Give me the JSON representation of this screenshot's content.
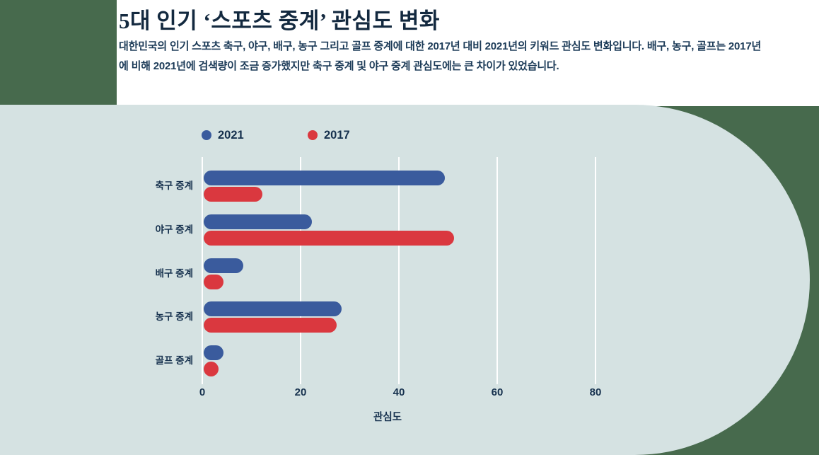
{
  "page": {
    "title": "5대 인기 ‘스포츠 중계’ 관심도 변화",
    "subtitle": "대한민국의 인기 스포츠 축구, 야구, 배구, 농구 그리고 골프 중계에 대한 2017년 대비 2021년의 키워드 관심도 변화입니다. 배구, 농구, 골프는 2017년에 비해 2021년에 검색량이 조금 증가했지만 축구 중계 및 야구 중계 관심도에는 큰 차이가 있었습니다."
  },
  "colors": {
    "page_background": "#476a4d",
    "header_card": "#ffffff",
    "panel": "#d5e2e2",
    "gridline": "#ffffff",
    "text": "#16314e",
    "bar_2021": "#3a5b9d",
    "bar_2017": "#da383f"
  },
  "chart_data": {
    "type": "bar",
    "orientation": "horizontal",
    "title": "5대 인기 ‘스포츠 중계’ 관심도 변화",
    "categories": [
      "축구 중계",
      "야구 중계",
      "배구 중계",
      "농구 중계",
      "골프 중계"
    ],
    "series": [
      {
        "name": "2021",
        "color": "#3a5b9d",
        "values": [
          49,
          22,
          8,
          28,
          4
        ]
      },
      {
        "name": "2017",
        "color": "#da383f",
        "values": [
          12,
          51,
          4,
          27,
          3
        ]
      }
    ],
    "xlabel": "관심도",
    "x_ticks": [
      "0",
      "20",
      "40",
      "60",
      "80"
    ],
    "xlim": [
      0,
      92
    ],
    "grid": true,
    "legend_position": "top-left"
  }
}
